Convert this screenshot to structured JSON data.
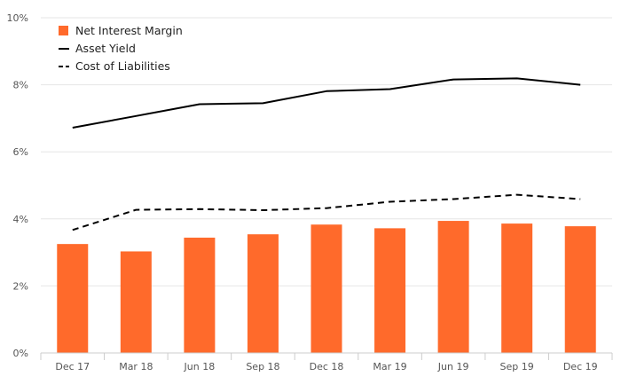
{
  "chart_data": {
    "type": "bar",
    "categories": [
      "Dec 17",
      "Mar 18",
      "Jun 18",
      "Sep 18",
      "Dec 18",
      "Mar 19",
      "Jun 19",
      "Sep 19",
      "Dec 19"
    ],
    "series": [
      {
        "name": "Net Interest Margin",
        "kind": "bar",
        "color": "#ff6a2b",
        "values": [
          3.25,
          3.03,
          3.44,
          3.54,
          3.83,
          3.72,
          3.94,
          3.86,
          3.78
        ]
      },
      {
        "name": "Asset Yield",
        "kind": "line",
        "style": "solid",
        "color": "#000000",
        "values": [
          6.72,
          7.07,
          7.42,
          7.45,
          7.81,
          7.87,
          8.16,
          8.19,
          8.0
        ]
      },
      {
        "name": "Cost of Liabilities",
        "kind": "line",
        "style": "dashed",
        "color": "#000000",
        "values": [
          3.67,
          4.27,
          4.29,
          4.26,
          4.32,
          4.51,
          4.59,
          4.72,
          4.59
        ]
      }
    ],
    "y_ticks": [
      "0%",
      "2%",
      "4%",
      "6%",
      "8%",
      "10%"
    ],
    "ylim": [
      0,
      10
    ],
    "grid": true,
    "legend_position": "top-left"
  }
}
